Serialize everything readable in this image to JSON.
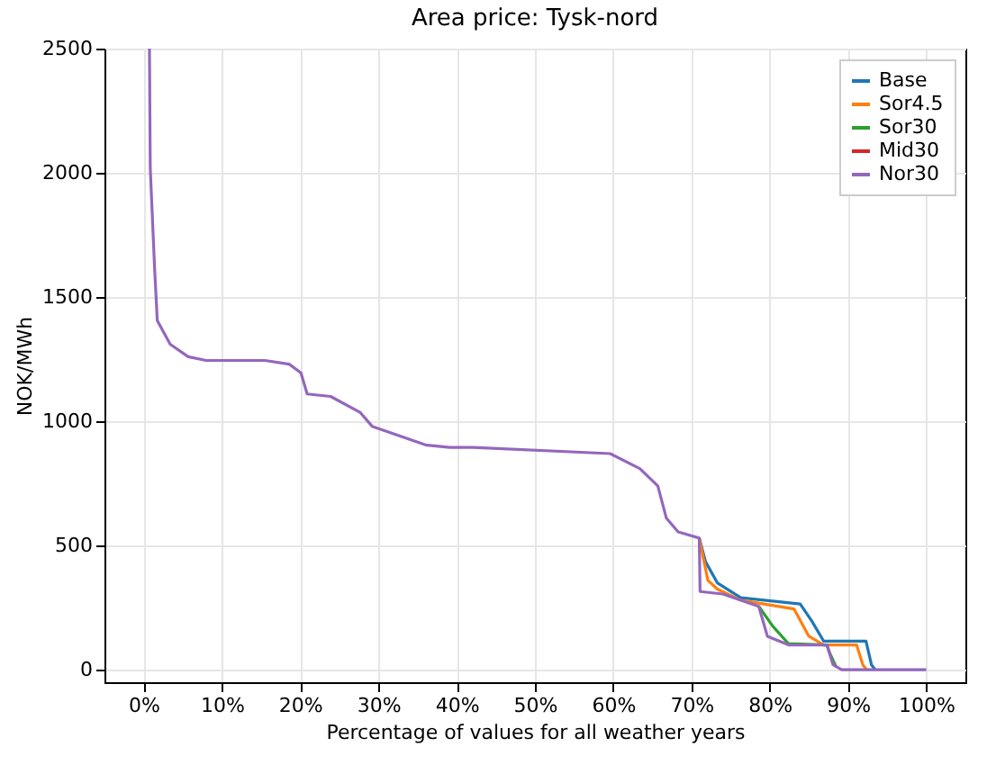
{
  "chart_data": {
    "type": "line",
    "title": "Area price: Tysk-nord",
    "xlabel": "Percentage of values for all weather years",
    "ylabel": "NOK/MWh",
    "xlim": [
      -5,
      105
    ],
    "ylim": [
      -50,
      2500
    ],
    "xticks": [
      {
        "value": 0,
        "label": "0%"
      },
      {
        "value": 10,
        "label": "10%"
      },
      {
        "value": 20,
        "label": "20%"
      },
      {
        "value": 30,
        "label": "30%"
      },
      {
        "value": 40,
        "label": "40%"
      },
      {
        "value": 50,
        "label": "50%"
      },
      {
        "value": 60,
        "label": "60%"
      },
      {
        "value": 70,
        "label": "70%"
      },
      {
        "value": 80,
        "label": "80%"
      },
      {
        "value": 90,
        "label": "90%"
      },
      {
        "value": 100,
        "label": "100%"
      }
    ],
    "yticks": [
      0,
      500,
      1000,
      1500,
      2000,
      2500
    ],
    "grid": true,
    "legend": "top right",
    "series": [
      {
        "name": "Base",
        "color": "#1f77b4",
        "x": [
          71,
          71.8,
          73.3,
          76.3,
          83.9,
          85.4,
          86.9,
          92.3,
          93,
          93.5
        ],
        "values": [
          530,
          435,
          350,
          290,
          265,
          195,
          115,
          115,
          20,
          0
        ]
      },
      {
        "name": "Sor4.5",
        "color": "#ff7f0e",
        "x": [
          71,
          72.1,
          73.3,
          76.3,
          83.1,
          85,
          86.9,
          91.1,
          91.9,
          92.4
        ],
        "values": [
          530,
          360,
          325,
          280,
          245,
          135,
          100,
          100,
          20,
          0
        ]
      },
      {
        "name": "Sor30",
        "color": "#2ca02c",
        "x": [
          78.6,
          80.4,
          82.4,
          87.3,
          87.7,
          88.5
        ],
        "values": [
          255,
          175,
          105,
          100,
          65,
          10
        ]
      },
      {
        "name": "Mid30",
        "color": "#d62728"
      },
      {
        "name": "Nor30",
        "color": "#9467bd",
        "x": [
          0.75,
          0.85,
          1.4,
          1.75,
          3.4,
          5.7,
          8,
          15.5,
          18.6,
          20.1,
          20.9,
          23.9,
          27.7,
          29.2,
          36,
          39.1,
          42.1,
          59.6,
          63.4,
          65.7,
          66.8,
          68.3,
          71,
          71.1,
          74,
          78.6,
          79.7,
          82.4,
          87.3,
          88.1,
          89.2,
          100
        ],
        "values": [
          2500,
          2020,
          1620,
          1405,
          1310,
          1260,
          1245,
          1245,
          1230,
          1195,
          1110,
          1100,
          1035,
          980,
          905,
          895,
          895,
          870,
          810,
          740,
          610,
          555,
          530,
          315,
          305,
          255,
          135,
          100,
          100,
          20,
          0,
          0
        ]
      }
    ]
  }
}
